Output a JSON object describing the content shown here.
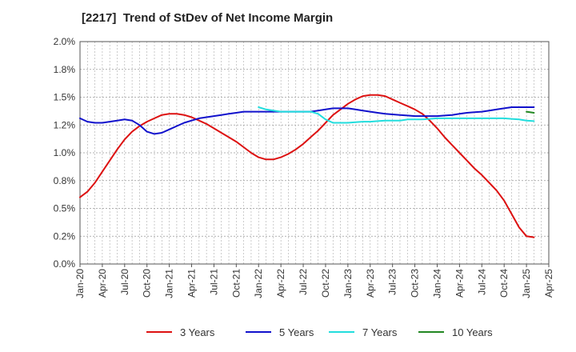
{
  "chart_data": {
    "type": "line",
    "title": "[2217]  Trend of StDev of Net Income Margin",
    "xlabel": "",
    "ylabel": "",
    "ylim": [
      0,
      2.0
    ],
    "y_ticks": [
      "0.0%",
      "0.2%",
      "0.5%",
      "0.8%",
      "1.0%",
      "1.2%",
      "1.5%",
      "1.8%",
      "2.0%"
    ],
    "y_tick_values": [
      0,
      0.25,
      0.5,
      0.75,
      1.0,
      1.25,
      1.5,
      1.75,
      2.0
    ],
    "x_ticks": [
      "Jan-20",
      "Apr-20",
      "Jul-20",
      "Oct-20",
      "Jan-21",
      "Apr-21",
      "Jul-21",
      "Oct-21",
      "Jan-22",
      "Apr-22",
      "Jul-22",
      "Oct-22",
      "Jan-23",
      "Apr-23",
      "Jul-23",
      "Oct-23",
      "Jan-24",
      "Apr-24",
      "Jul-24",
      "Oct-24",
      "Jan-25",
      "Apr-25"
    ],
    "grid": true,
    "legend_position": "bottom",
    "series": [
      {
        "name": "3 Years",
        "color": "#dd1111",
        "points": [
          [
            "Jan-20",
            0.6
          ],
          [
            "Feb-20",
            0.65
          ],
          [
            "Mar-20",
            0.73
          ],
          [
            "Apr-20",
            0.83
          ],
          [
            "May-20",
            0.93
          ],
          [
            "Jun-20",
            1.03
          ],
          [
            "Jul-20",
            1.12
          ],
          [
            "Aug-20",
            1.19
          ],
          [
            "Sep-20",
            1.24
          ],
          [
            "Oct-20",
            1.28
          ],
          [
            "Nov-20",
            1.31
          ],
          [
            "Dec-20",
            1.34
          ],
          [
            "Jan-21",
            1.35
          ],
          [
            "Feb-21",
            1.35
          ],
          [
            "Mar-21",
            1.34
          ],
          [
            "Apr-21",
            1.32
          ],
          [
            "May-21",
            1.29
          ],
          [
            "Jun-21",
            1.26
          ],
          [
            "Jul-21",
            1.22
          ],
          [
            "Aug-21",
            1.18
          ],
          [
            "Sep-21",
            1.14
          ],
          [
            "Oct-21",
            1.1
          ],
          [
            "Nov-21",
            1.05
          ],
          [
            "Dec-21",
            1.0
          ],
          [
            "Jan-22",
            0.96
          ],
          [
            "Feb-22",
            0.94
          ],
          [
            "Mar-22",
            0.94
          ],
          [
            "Apr-22",
            0.96
          ],
          [
            "May-22",
            0.99
          ],
          [
            "Jun-22",
            1.03
          ],
          [
            "Jul-22",
            1.08
          ],
          [
            "Aug-22",
            1.14
          ],
          [
            "Sep-22",
            1.2
          ],
          [
            "Oct-22",
            1.27
          ],
          [
            "Nov-22",
            1.34
          ],
          [
            "Dec-22",
            1.39
          ],
          [
            "Jan-23",
            1.44
          ],
          [
            "Feb-23",
            1.48
          ],
          [
            "Mar-23",
            1.51
          ],
          [
            "Apr-23",
            1.52
          ],
          [
            "May-23",
            1.52
          ],
          [
            "Jun-23",
            1.51
          ],
          [
            "Jul-23",
            1.48
          ],
          [
            "Aug-23",
            1.45
          ],
          [
            "Sep-23",
            1.42
          ],
          [
            "Oct-23",
            1.39
          ],
          [
            "Nov-23",
            1.35
          ],
          [
            "Dec-23",
            1.29
          ],
          [
            "Jan-24",
            1.22
          ],
          [
            "Feb-24",
            1.14
          ],
          [
            "Mar-24",
            1.07
          ],
          [
            "Apr-24",
            1.0
          ],
          [
            "May-24",
            0.93
          ],
          [
            "Jun-24",
            0.86
          ],
          [
            "Jul-24",
            0.8
          ],
          [
            "Aug-24",
            0.73
          ],
          [
            "Sep-24",
            0.66
          ],
          [
            "Oct-24",
            0.57
          ],
          [
            "Nov-24",
            0.45
          ],
          [
            "Dec-24",
            0.33
          ],
          [
            "Jan-25",
            0.25
          ],
          [
            "Feb-25",
            0.24
          ]
        ]
      },
      {
        "name": "5 Years",
        "color": "#1111cc",
        "points": [
          [
            "Jan-20",
            1.31
          ],
          [
            "Feb-20",
            1.28
          ],
          [
            "Mar-20",
            1.27
          ],
          [
            "Apr-20",
            1.27
          ],
          [
            "May-20",
            1.28
          ],
          [
            "Jun-20",
            1.29
          ],
          [
            "Jul-20",
            1.3
          ],
          [
            "Aug-20",
            1.29
          ],
          [
            "Sep-20",
            1.25
          ],
          [
            "Oct-20",
            1.19
          ],
          [
            "Nov-20",
            1.17
          ],
          [
            "Dec-20",
            1.18
          ],
          [
            "Jan-21",
            1.21
          ],
          [
            "Feb-21",
            1.24
          ],
          [
            "Mar-21",
            1.27
          ],
          [
            "Apr-21",
            1.29
          ],
          [
            "May-21",
            1.31
          ],
          [
            "Jun-21",
            1.32
          ],
          [
            "Jul-21",
            1.33
          ],
          [
            "Aug-21",
            1.34
          ],
          [
            "Sep-21",
            1.35
          ],
          [
            "Oct-21",
            1.36
          ],
          [
            "Nov-21",
            1.37
          ],
          [
            "Dec-21",
            1.37
          ],
          [
            "Jan-22",
            1.37
          ],
          [
            "Feb-22",
            1.37
          ],
          [
            "Mar-22",
            1.37
          ],
          [
            "Apr-22",
            1.37
          ],
          [
            "May-22",
            1.37
          ],
          [
            "Jun-22",
            1.37
          ],
          [
            "Jul-22",
            1.37
          ],
          [
            "Aug-22",
            1.37
          ],
          [
            "Sep-22",
            1.38
          ],
          [
            "Oct-22",
            1.39
          ],
          [
            "Nov-22",
            1.4
          ],
          [
            "Dec-22",
            1.4
          ],
          [
            "Jan-23",
            1.4
          ],
          [
            "Feb-23",
            1.39
          ],
          [
            "Mar-23",
            1.38
          ],
          [
            "Apr-23",
            1.37
          ],
          [
            "May-23",
            1.36
          ],
          [
            "Jun-23",
            1.35
          ],
          [
            "Jul-23",
            1.345
          ],
          [
            "Aug-23",
            1.34
          ],
          [
            "Sep-23",
            1.335
          ],
          [
            "Oct-23",
            1.33
          ],
          [
            "Nov-23",
            1.33
          ],
          [
            "Dec-23",
            1.33
          ],
          [
            "Jan-24",
            1.33
          ],
          [
            "Feb-24",
            1.335
          ],
          [
            "Mar-24",
            1.34
          ],
          [
            "Apr-24",
            1.35
          ],
          [
            "May-24",
            1.36
          ],
          [
            "Jun-24",
            1.365
          ],
          [
            "Jul-24",
            1.37
          ],
          [
            "Aug-24",
            1.38
          ],
          [
            "Sep-24",
            1.39
          ],
          [
            "Oct-24",
            1.4
          ],
          [
            "Nov-24",
            1.41
          ],
          [
            "Dec-24",
            1.41
          ],
          [
            "Jan-25",
            1.41
          ],
          [
            "Feb-25",
            1.41
          ]
        ]
      },
      {
        "name": "7 Years",
        "color": "#22dddd",
        "points": [
          [
            "Jan-22",
            1.41
          ],
          [
            "Feb-22",
            1.39
          ],
          [
            "Mar-22",
            1.38
          ],
          [
            "Apr-22",
            1.37
          ],
          [
            "May-22",
            1.37
          ],
          [
            "Jun-22",
            1.37
          ],
          [
            "Jul-22",
            1.37
          ],
          [
            "Aug-22",
            1.37
          ],
          [
            "Sep-22",
            1.35
          ],
          [
            "Oct-22",
            1.3
          ],
          [
            "Nov-22",
            1.27
          ],
          [
            "Dec-22",
            1.27
          ],
          [
            "Jan-23",
            1.27
          ],
          [
            "Feb-23",
            1.275
          ],
          [
            "Mar-23",
            1.28
          ],
          [
            "Apr-23",
            1.28
          ],
          [
            "May-23",
            1.285
          ],
          [
            "Jun-23",
            1.29
          ],
          [
            "Jul-23",
            1.29
          ],
          [
            "Aug-23",
            1.29
          ],
          [
            "Sep-23",
            1.3
          ],
          [
            "Oct-23",
            1.3
          ],
          [
            "Nov-23",
            1.3
          ],
          [
            "Dec-23",
            1.305
          ],
          [
            "Jan-24",
            1.31
          ],
          [
            "Feb-24",
            1.31
          ],
          [
            "Mar-24",
            1.31
          ],
          [
            "Apr-24",
            1.31
          ],
          [
            "May-24",
            1.31
          ],
          [
            "Jun-24",
            1.31
          ],
          [
            "Jul-24",
            1.31
          ],
          [
            "Aug-24",
            1.31
          ],
          [
            "Sep-24",
            1.31
          ],
          [
            "Oct-24",
            1.31
          ],
          [
            "Nov-24",
            1.305
          ],
          [
            "Dec-24",
            1.3
          ],
          [
            "Jan-25",
            1.29
          ],
          [
            "Feb-25",
            1.285
          ]
        ]
      },
      {
        "name": "10 Years",
        "color": "#228822",
        "points": [
          [
            "Jan-25",
            1.37
          ],
          [
            "Feb-25",
            1.36
          ]
        ]
      }
    ]
  }
}
